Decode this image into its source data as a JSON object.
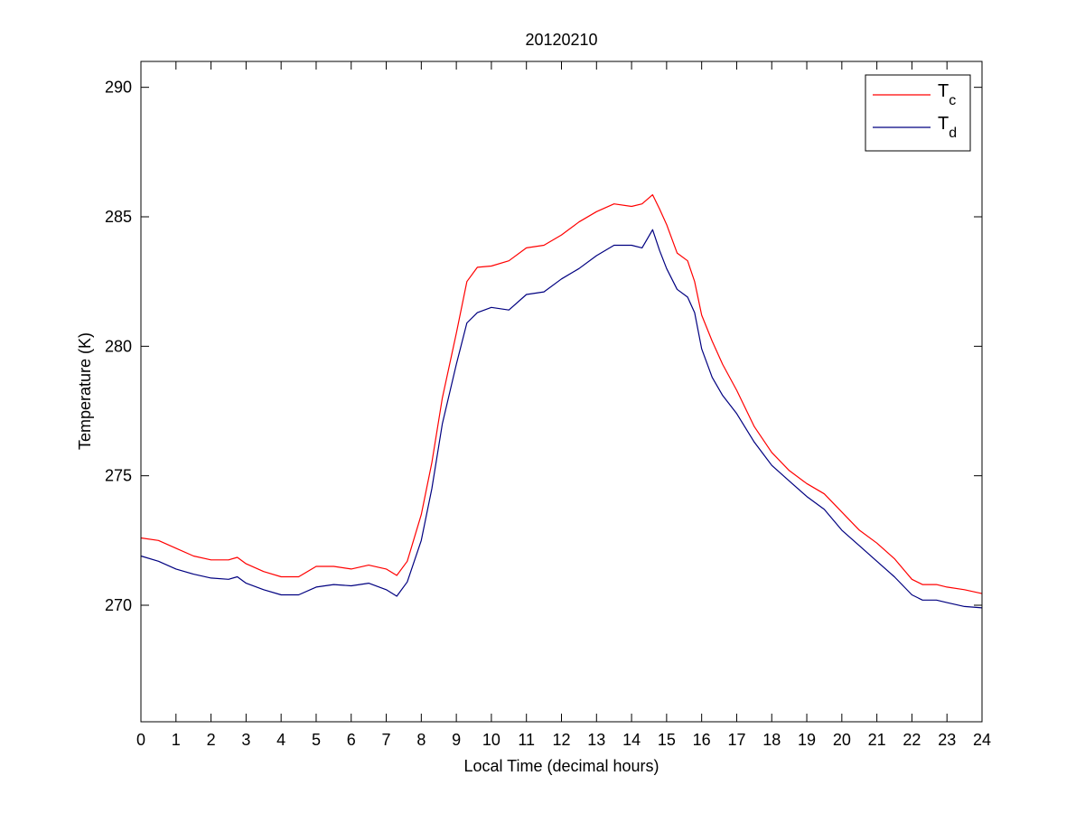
{
  "chart_data": {
    "type": "line",
    "title": "20120210",
    "xlabel": "Local Time (decimal hours)",
    "ylabel": "Temperature (K)",
    "xlim": [
      0,
      24
    ],
    "ylim": [
      265.5,
      291
    ],
    "xticks": [
      0,
      1,
      2,
      3,
      4,
      5,
      6,
      7,
      8,
      9,
      10,
      11,
      12,
      13,
      14,
      15,
      16,
      17,
      18,
      19,
      20,
      21,
      22,
      23,
      24
    ],
    "yticks": [
      270,
      275,
      280,
      285,
      290
    ],
    "grid": false,
    "legend_position": "top-right",
    "series": [
      {
        "name": "T",
        "subscript": "c",
        "color": "#ff0000",
        "x": [
          0,
          0.5,
          1,
          1.5,
          2,
          2.5,
          2.75,
          3,
          3.5,
          4,
          4.5,
          5,
          5.5,
          6,
          6.5,
          7,
          7.3,
          7.6,
          8,
          8.3,
          8.6,
          9,
          9.3,
          9.6,
          10,
          10.5,
          11,
          11.5,
          12,
          12.5,
          13,
          13.5,
          14,
          14.3,
          14.6,
          14.8,
          15,
          15.3,
          15.6,
          15.8,
          16,
          16.3,
          16.6,
          17,
          17.5,
          18,
          18.5,
          19,
          19.5,
          20,
          20.5,
          21,
          21.5,
          22,
          22.3,
          22.7,
          23,
          23.5,
          24
        ],
        "y": [
          272.6,
          272.5,
          272.2,
          271.9,
          271.75,
          271.75,
          271.85,
          271.6,
          271.3,
          271.1,
          271.1,
          271.5,
          271.5,
          271.4,
          271.55,
          271.4,
          271.15,
          271.7,
          273.5,
          275.5,
          278,
          280.5,
          282.5,
          283.05,
          283.1,
          283.3,
          283.8,
          283.9,
          284.3,
          284.8,
          285.2,
          285.5,
          285.4,
          285.5,
          285.85,
          285.3,
          284.7,
          283.6,
          283.3,
          282.5,
          281.2,
          280.2,
          279.3,
          278.3,
          276.9,
          275.9,
          275.2,
          274.7,
          274.3,
          273.6,
          272.9,
          272.4,
          271.8,
          271,
          270.8,
          270.8,
          270.7,
          270.6,
          270.45
        ]
      },
      {
        "name": "T",
        "subscript": "d",
        "color": "#000080",
        "x": [
          0,
          0.5,
          1,
          1.5,
          2,
          2.5,
          2.75,
          3,
          3.5,
          4,
          4.5,
          5,
          5.5,
          6,
          6.5,
          7,
          7.3,
          7.6,
          8,
          8.3,
          8.6,
          9,
          9.3,
          9.6,
          10,
          10.5,
          11,
          11.5,
          12,
          12.5,
          13,
          13.5,
          14,
          14.3,
          14.6,
          14.8,
          15,
          15.3,
          15.6,
          15.8,
          16,
          16.3,
          16.6,
          17,
          17.5,
          18,
          18.5,
          19,
          19.5,
          20,
          20.5,
          21,
          21.5,
          22,
          22.3,
          22.7,
          23,
          23.5,
          24
        ],
        "y": [
          271.9,
          271.7,
          271.4,
          271.2,
          271.05,
          271,
          271.1,
          270.85,
          270.6,
          270.4,
          270.4,
          270.7,
          270.8,
          270.75,
          270.85,
          270.6,
          270.35,
          270.9,
          272.5,
          274.5,
          277,
          279.3,
          280.9,
          281.3,
          281.5,
          281.4,
          282,
          282.1,
          282.6,
          283,
          283.5,
          283.9,
          283.9,
          283.8,
          284.5,
          283.7,
          283,
          282.2,
          281.9,
          281.3,
          279.9,
          278.8,
          278.1,
          277.4,
          276.3,
          275.4,
          274.8,
          274.2,
          273.7,
          272.9,
          272.3,
          271.7,
          271.1,
          270.4,
          270.2,
          270.2,
          270.1,
          269.95,
          269.9
        ]
      }
    ]
  }
}
